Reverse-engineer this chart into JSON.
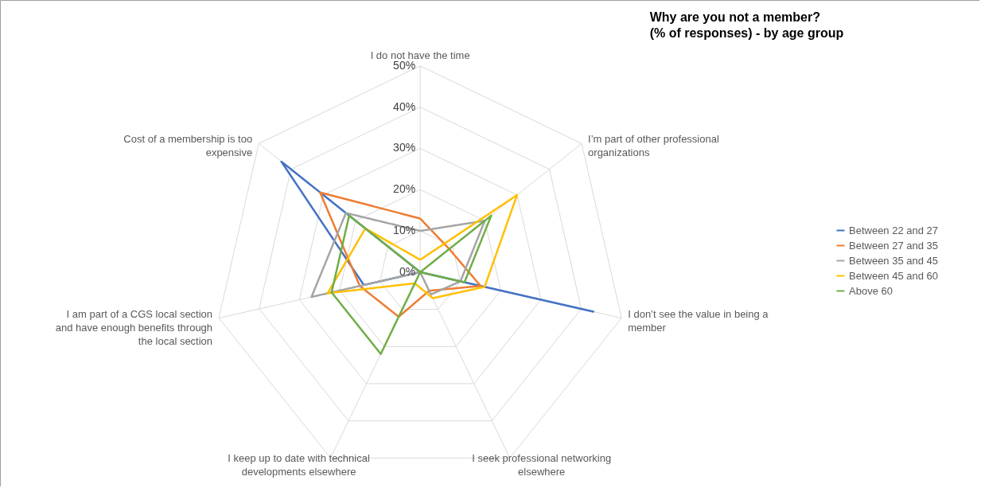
{
  "chart_data": {
    "type": "radar",
    "title": "Why are you not a member?\n(% of responses) - by age group",
    "categories": [
      "I do not have the time",
      "I’m part of other professional organizations",
      "I don’t see the value in being a member",
      "I seek professional networking elsewhere",
      "I keep up to date with technical developments elsewhere",
      "I am part of a CGS local section and have enough benefits through the local section",
      "Cost of a membership is too expensive"
    ],
    "series": [
      {
        "name": "Between 22 and 27",
        "color": "#4472c4",
        "values": [
          0,
          0,
          43,
          0,
          0,
          14,
          43
        ]
      },
      {
        "name": "Between 27 and 35",
        "color": "#ed7d31",
        "values": [
          13,
          9,
          15,
          5,
          12,
          15,
          31
        ]
      },
      {
        "name": "Between 35 and 45",
        "color": "#a5a5a5",
        "values": [
          10,
          20,
          10,
          6,
          0,
          27,
          23
        ]
      },
      {
        "name": "Between 45 and 60",
        "color": "#ffc000",
        "values": [
          3,
          30,
          16,
          7,
          3,
          23,
          17
        ]
      },
      {
        "name": "Above 60",
        "color": "#70ad47",
        "values": [
          0,
          22,
          11,
          0,
          22,
          22,
          22
        ]
      }
    ],
    "ylim": [
      0,
      50
    ],
    "yticks": [
      {
        "value": 0,
        "label": "0%"
      },
      {
        "value": 10,
        "label": "10%"
      },
      {
        "value": 20,
        "label": "20%"
      },
      {
        "value": 30,
        "label": "30%"
      },
      {
        "value": 40,
        "label": "40%"
      },
      {
        "value": 50,
        "label": "50%"
      }
    ],
    "grid": true,
    "legend": "right",
    "line_style": "solid",
    "marker": "none"
  }
}
